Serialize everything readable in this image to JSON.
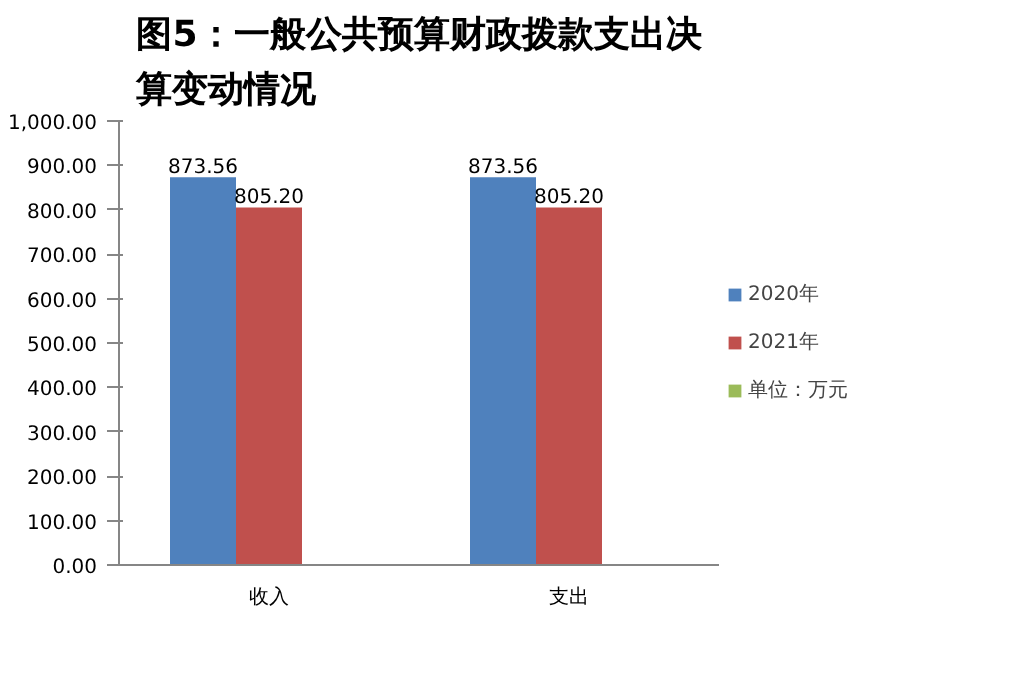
{
  "chart_data": {
    "type": "bar",
    "title": "图5：一般公共预算财政拨款支出决算变动情况",
    "categories": [
      "收入",
      "支出"
    ],
    "series": [
      {
        "name": "2020年",
        "color": "#4f81bd",
        "values": [
          873.56,
          873.56
        ],
        "value_labels": [
          "873.56",
          "873.56"
        ]
      },
      {
        "name": "2021年",
        "color": "#c0504d",
        "values": [
          805.2,
          805.2
        ],
        "value_labels": [
          "805.20",
          "805.20"
        ]
      },
      {
        "name": "单位：万元",
        "color": "#9bbb59",
        "values": [
          0,
          0
        ]
      }
    ],
    "ylim": [
      0,
      1000
    ],
    "yticks": [
      {
        "value": 0,
        "label": "0.00"
      },
      {
        "value": 100,
        "label": "100.00"
      },
      {
        "value": 200,
        "label": "200.00"
      },
      {
        "value": 300,
        "label": "300.00"
      },
      {
        "value": 400,
        "label": "400.00"
      },
      {
        "value": 500,
        "label": "500.00"
      },
      {
        "value": 600,
        "label": "600.00"
      },
      {
        "value": 700,
        "label": "700.00"
      },
      {
        "value": 800,
        "label": "800.00"
      },
      {
        "value": 900,
        "label": "900.00"
      },
      {
        "value": 1000,
        "label": "1,000.00"
      }
    ],
    "legend": "right"
  }
}
